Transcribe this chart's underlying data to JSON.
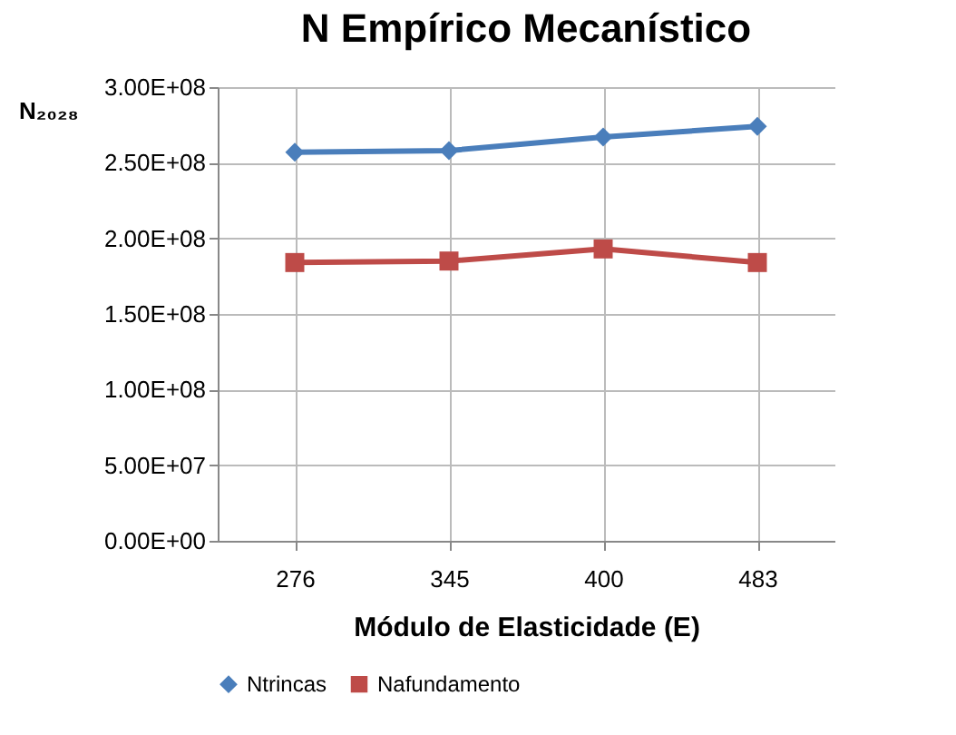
{
  "chart_data": {
    "type": "line",
    "title": "N Empírico Mecanístico",
    "xlabel": "Módulo de Elasticidade (E)",
    "ylabel": "N₂₀₂₈",
    "categories": [
      "276",
      "345",
      "400",
      "483"
    ],
    "series": [
      {
        "name": "Ntrincas",
        "color": "#4a7ebb",
        "marker": "diamond",
        "values": [
          257000000,
          258000000,
          267000000,
          274000000
        ]
      },
      {
        "name": "Nafundamento",
        "color": "#be4b48",
        "marker": "square",
        "values": [
          184000000,
          185000000,
          193000000,
          184000000
        ]
      }
    ],
    "ylim": [
      0,
      300000000
    ],
    "yticks": [
      {
        "value": 0,
        "label": "0.00E+00"
      },
      {
        "value": 50000000,
        "label": "5.00E+07"
      },
      {
        "value": 100000000,
        "label": "1.00E+08"
      },
      {
        "value": 150000000,
        "label": "1.50E+08"
      },
      {
        "value": 200000000,
        "label": "2.00E+08"
      },
      {
        "value": 250000000,
        "label": "2.50E+08"
      },
      {
        "value": 300000000,
        "label": "3.00E+08"
      }
    ],
    "grid": true,
    "legend": "bottom",
    "line_style": "solid"
  }
}
